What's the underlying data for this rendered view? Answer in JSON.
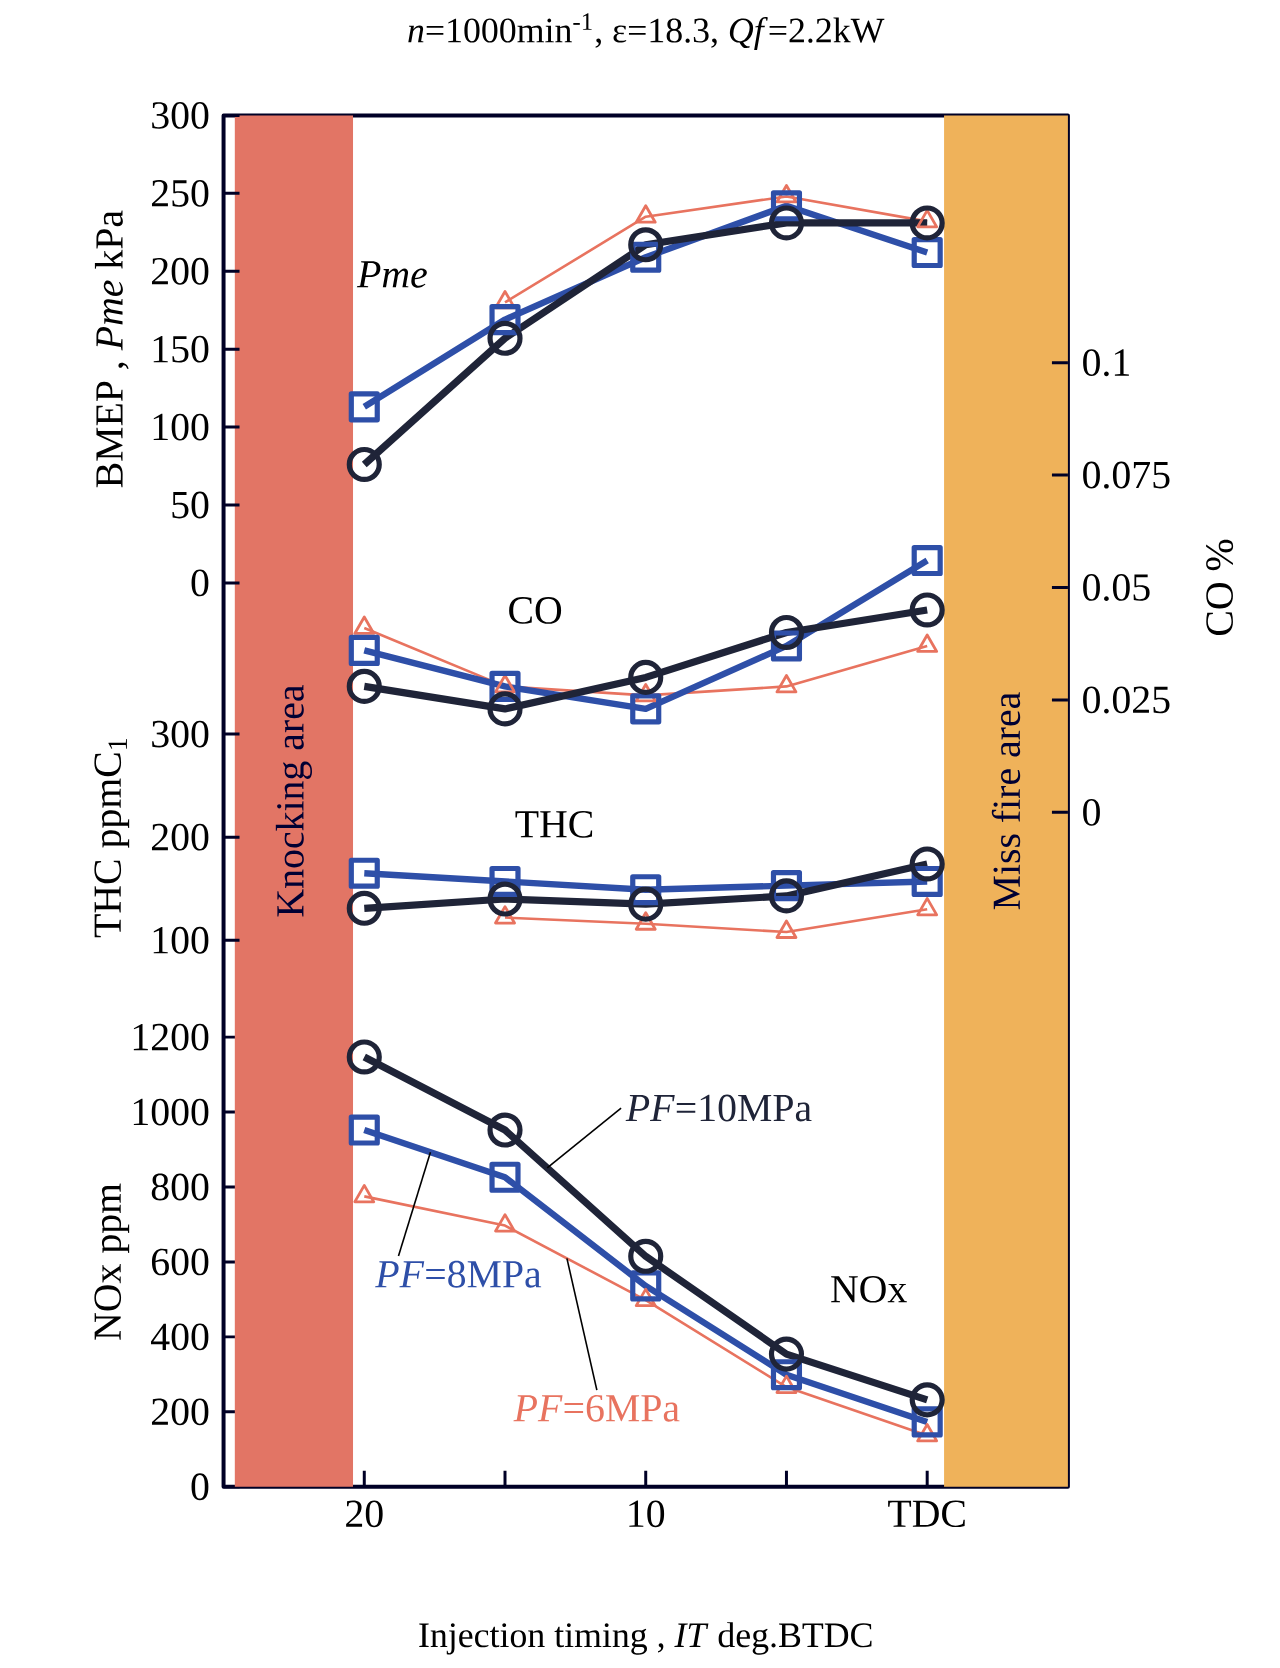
{
  "chart_data": [
    {
      "type": "line",
      "title": "*n*=1000min$^{-1}$,  ε=18.3,  *Qf*=2.2kW",
      "ylabel": "BMEP ,  *Pme* kPa",
      "x": [
        20,
        15,
        10,
        5,
        0
      ],
      "xlim": [
        25,
        -5
      ],
      "ylim": [
        -580,
        300
      ],
      "yticks": [
        0,
        50,
        100,
        150,
        200,
        250,
        300
      ],
      "tick_labels": "y",
      "annotations": [
        "*Pme*"
      ],
      "series": [
        {
          "color": "#e8735f",
          "marker": "triangle",
          "values": [
            null,
            180,
            235,
            248,
            232
          ]
        },
        {
          "color": "#2e4fa8",
          "marker": "square",
          "values": [
            113,
            169,
            209,
            242,
            212
          ]
        },
        {
          "color": "#1f2438",
          "marker": "circle",
          "values": [
            76,
            157,
            217,
            231,
            231
          ]
        }
      ]
    },
    {
      "type": "line",
      "y2label": "CO  %",
      "x": [
        20,
        15,
        10,
        5,
        0
      ],
      "xlim": [
        25,
        -5
      ],
      "y2lim": [
        -0.15,
        0.155
      ],
      "y2ticks": [
        0,
        0.025,
        0.05,
        0.075,
        0.1
      ],
      "tick_labels": "y",
      "annotations": [
        "CO"
      ],
      "series": [
        {
          "color": "#e8735f",
          "marker": "triangle",
          "axis": "y2",
          "values": [
            0.041,
            0.028,
            0.026,
            0.028,
            0.037
          ]
        },
        {
          "color": "#2e4fa8",
          "marker": "square",
          "axis": "y2",
          "values": [
            0.036,
            0.028,
            0.023,
            0.037,
            0.056
          ]
        },
        {
          "color": "#1f2438",
          "marker": "circle",
          "axis": "y2",
          "values": [
            0.028,
            0.023,
            0.03,
            0.04,
            0.045
          ]
        }
      ]
    },
    {
      "type": "line",
      "ylabel": "THC  ppmC$_{1}$",
      "x": [
        20,
        15,
        10,
        5,
        0
      ],
      "xlim": [
        25,
        -5
      ],
      "ylim": [
        -430,
        900
      ],
      "yticks": [
        100,
        200,
        300
      ],
      "tick_labels": "y",
      "annotations": [
        "THC"
      ],
      "series": [
        {
          "color": "#e8735f",
          "marker": "triangle",
          "values": [
            null,
            122,
            116,
            108,
            130
          ]
        },
        {
          "color": "#2e4fa8",
          "marker": "square",
          "values": [
            165,
            157,
            149,
            153,
            157
          ]
        },
        {
          "color": "#1f2438",
          "marker": "circle",
          "values": [
            131,
            140,
            135,
            143,
            174
          ]
        }
      ]
    },
    {
      "type": "line",
      "xlabel": "Injection timing , *IT* deg.BTDC",
      "ylabel": "NOx  ppm",
      "x": [
        20,
        15,
        10,
        5,
        0
      ],
      "xlim": [
        25,
        -5
      ],
      "ylim": [
        0,
        3660
      ],
      "xticks": [
        20,
        {
          "value": 15,
          "label": null
        },
        10,
        {
          "value": 5,
          "label": null
        },
        {
          "value": 0,
          "label": "TDC"
        }
      ],
      "yticks": [
        0,
        200,
        400,
        600,
        800,
        1000,
        1200
      ],
      "annotations": [
        "NOx"
      ],
      "bands": [
        {
          "axis": "x",
          "from": 24.6,
          "to": 20.4,
          "label": "Knocking area",
          "color": "#e27565"
        },
        {
          "axis": "x",
          "from": -0.6,
          "to": -5,
          "label": "Miss fire area",
          "color": "#efb25a"
        }
      ],
      "series": [
        {
          "name": "*PF*=6MPa",
          "color": "#e8735f",
          "marker": "triangle",
          "values": [
            775,
            697,
            498,
            266,
            137
          ]
        },
        {
          "name": "*PF*=8MPa",
          "color": "#2e4fa8",
          "marker": "square",
          "values": [
            952,
            826,
            536,
            299,
            173
          ]
        },
        {
          "name": "*PF*=10MPa",
          "color": "#1f2438",
          "marker": "circle",
          "values": [
            1147,
            952,
            615,
            354,
            232
          ]
        }
      ]
    }
  ]
}
